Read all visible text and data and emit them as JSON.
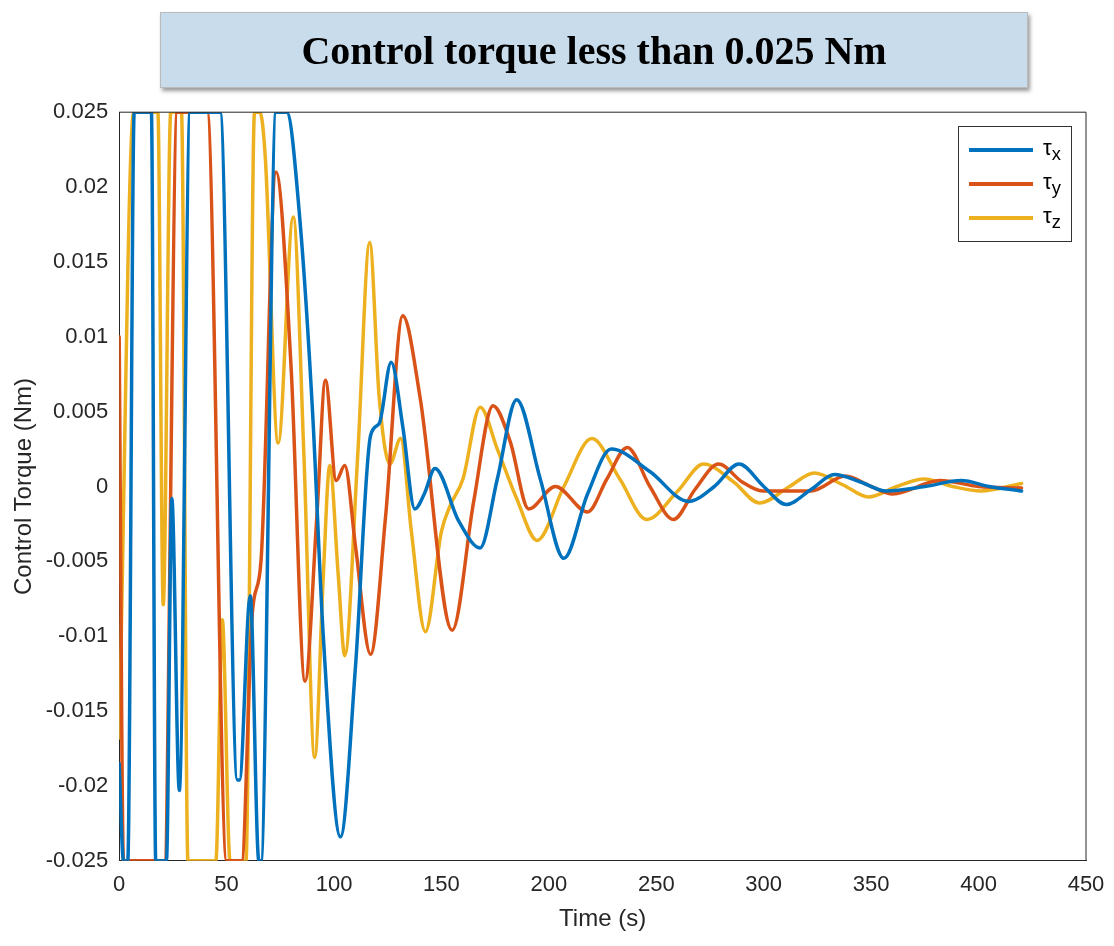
{
  "chart_data": {
    "type": "line",
    "title": "Control torque less than 0.025 Nm",
    "xlabel": "Time (s)",
    "ylabel": "Control Torque (Nm)",
    "xlim": [
      0,
      450
    ],
    "xticks": [
      0,
      50,
      100,
      150,
      200,
      250,
      300,
      350,
      400,
      450
    ],
    "ylim": [
      -0.025,
      0.025
    ],
    "yticks": [
      -0.025,
      -0.02,
      -0.015,
      -0.01,
      -0.005,
      0,
      0.005,
      0.01,
      0.015,
      0.02,
      0.025
    ],
    "grid": false,
    "legend": "top right",
    "marker": "none",
    "line_style": "solid",
    "series": [
      {
        "name": "τ$_{x}$",
        "color": "#0072bd",
        "x": [
          0,
          2,
          4,
          7,
          15,
          17,
          22,
          24.5,
          28,
          33,
          34.5,
          44,
          47,
          55,
          56,
          61,
          65,
          66,
          73,
          78,
          84,
          90,
          95,
          103,
          110,
          117,
          121,
          126.6,
          132,
          137.6,
          142,
          147,
          158,
          168,
          176,
          185,
          196,
          207,
          218,
          229,
          247,
          265,
          277,
          288.5,
          300,
          310.5,
          322,
          333,
          345,
          357,
          375,
          392,
          405,
          420
        ],
        "values": [
          -0.0185,
          -0.025,
          -0.025,
          0.025,
          0.025,
          -0.025,
          -0.025,
          -0.0008,
          -0.0203,
          0.025,
          0.025,
          0.025,
          0.025,
          -0.0196,
          -0.0196,
          -0.0073,
          -0.025,
          -0.025,
          0.025,
          0.025,
          0.018,
          0.005,
          -0.01,
          -0.0234,
          -0.012,
          0.0034,
          0.0042,
          0.0083,
          0.004,
          -0.0015,
          -0.0005,
          0.0012,
          -0.0023,
          -0.0041,
          0.0005,
          0.0058,
          0.0005,
          -0.0048,
          -0.0005,
          0.0025,
          0.001,
          -0.001,
          0,
          0.0015,
          0,
          -0.0012,
          -0.0002,
          0.0008,
          0.0003,
          -0.0003,
          0,
          0.0004,
          0,
          -0.0003
        ]
      },
      {
        "name": "τ$_{y}$",
        "color": "#d95319",
        "x": [
          0,
          2,
          21,
          27,
          41,
          50,
          57,
          62,
          66,
          73,
          80,
          86.5,
          92,
          96,
          101,
          105,
          110,
          117,
          124,
          132,
          140,
          155,
          165,
          174,
          182,
          190.6,
          203,
          218,
          227,
          236.5,
          247,
          258,
          268,
          279,
          290,
          299.5,
          322,
          338,
          350,
          360,
          382,
          400,
          420
        ],
        "values": [
          0.01,
          -0.025,
          -0.025,
          0.025,
          0.025,
          -0.025,
          -0.025,
          -0.0084,
          -0.005,
          0.021,
          0.008,
          -0.013,
          -0.002,
          0.0071,
          0.0004,
          0.0014,
          -0.004,
          -0.0112,
          -0.002,
          0.0114,
          0.006,
          -0.0096,
          -0.001,
          0.0054,
          0.003,
          -0.0015,
          0,
          -0.0017,
          0.0005,
          0.0026,
          0,
          -0.0022,
          -0.0002,
          0.0015,
          0.0003,
          -0.0003,
          -0.0003,
          0.0007,
          0,
          -0.0005,
          0.0004,
          0,
          -0.0001
        ]
      },
      {
        "name": "τ$_{z}$",
        "color": "#edb120",
        "x": [
          0,
          6.7,
          18,
          20.5,
          24,
          29,
          32,
          45,
          48,
          51.6,
          59,
          63,
          65.5,
          68,
          74,
          81,
          86,
          91,
          95,
          98,
          102,
          105,
          111,
          116.6,
          121,
          126,
          131,
          136,
          142.5,
          150,
          154,
          160,
          168,
          176,
          185,
          194.5,
          207,
          220,
          233,
          245.5,
          260,
          272,
          286,
          298,
          312,
          323.5,
          337,
          348.7,
          362,
          374.5,
          388,
          401,
          420
        ],
        "values": [
          -0.0168,
          0.025,
          0.025,
          -0.0079,
          0.025,
          0.025,
          -0.025,
          -0.025,
          -0.0089,
          -0.025,
          -0.025,
          0.025,
          0.025,
          0.022,
          0.0029,
          0.018,
          0.002,
          -0.0181,
          -0.006,
          0.0014,
          -0.006,
          -0.0113,
          0.002,
          0.0163,
          0.006,
          0.0015,
          0.0032,
          -0.003,
          -0.0097,
          -0.003,
          -0.0013,
          0.0005,
          0.0053,
          0.0025,
          -0.0008,
          -0.0036,
          0,
          0.0032,
          0.0005,
          -0.0022,
          -0.0003,
          0.0015,
          0.0003,
          -0.0011,
          0,
          0.0009,
          0.0001,
          -0.0007,
          0,
          0.0005,
          0,
          -0.0003,
          0.0002
        ]
      }
    ]
  }
}
